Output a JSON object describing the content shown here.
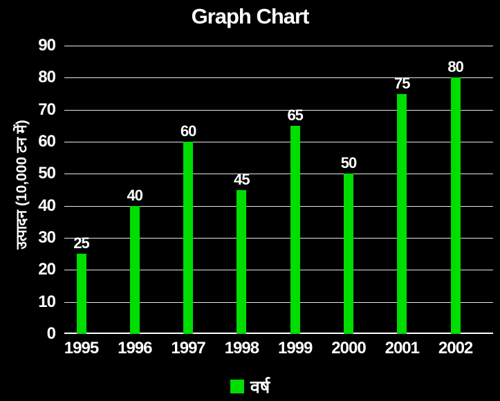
{
  "title": "Graph Chart",
  "colors": {
    "background": "#000000",
    "bar": "#00dd00",
    "gridline": "#e8e8e8",
    "axis_line": "#ffffff",
    "text": "#ffffff"
  },
  "chart_data": {
    "type": "bar",
    "title": "Graph Chart",
    "categories": [
      "1995",
      "1996",
      "1997",
      "1998",
      "1999",
      "2000",
      "2001",
      "2002"
    ],
    "values": [
      25,
      40,
      60,
      45,
      65,
      50,
      75,
      80
    ],
    "xlabel": "",
    "ylabel": "उत्पादन (10,000 टन में)",
    "ylim": [
      0,
      90
    ],
    "yticks": [
      0,
      10,
      20,
      30,
      40,
      50,
      60,
      70,
      80,
      90
    ],
    "grid": "horizontal",
    "value_labels": true,
    "bar_color": "#00dd00",
    "legend": {
      "position": "bottom-center",
      "entries": [
        {
          "label": "वर्ष",
          "color": "#00dd00"
        }
      ]
    }
  }
}
